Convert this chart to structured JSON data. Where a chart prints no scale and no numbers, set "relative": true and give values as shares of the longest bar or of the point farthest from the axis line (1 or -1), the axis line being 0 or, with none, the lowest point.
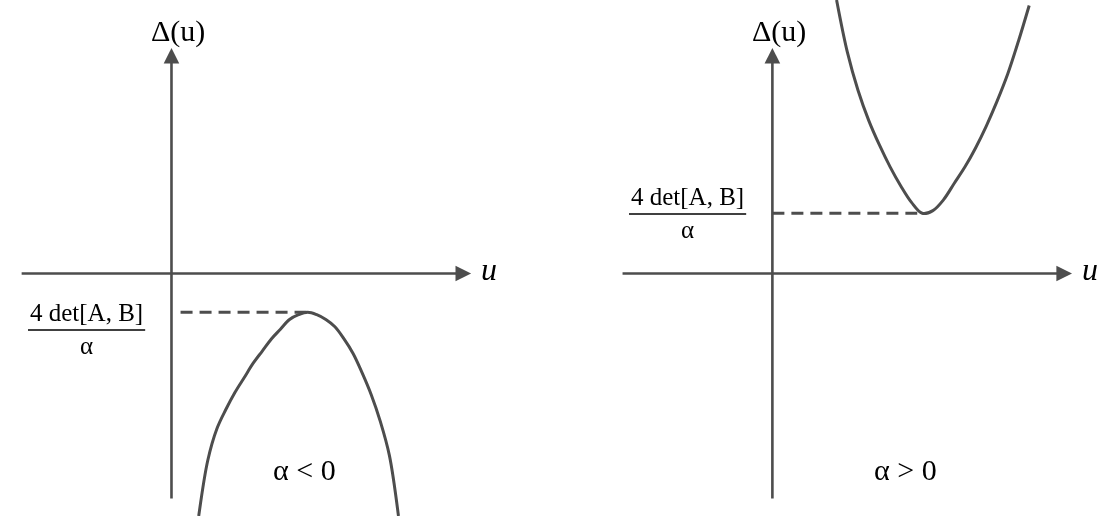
{
  "chart_data": [
    {
      "type": "line",
      "relative": true,
      "xlabel": "u",
      "ylabel": "Δ(u)",
      "categories": [
        null,
        null,
        null,
        null,
        null,
        null,
        null,
        null,
        null,
        null,
        null,
        null,
        null,
        null,
        null,
        null,
        null,
        null,
        null,
        null,
        null,
        null,
        null,
        null,
        null,
        null,
        null,
        null,
        null,
        null,
        null,
        null,
        null,
        null
      ],
      "series": [
        {
          "color": "#4d4d4d",
          "values": [
            null,
            null,
            null,
            -1,
            -0.77,
            -0.64,
            -0.56,
            -0.49,
            -0.43,
            -0.37,
            -0.32,
            -0.27,
            -0.23,
            -0.19,
            -0.17,
            -0.16,
            -0.17,
            -0.19,
            -0.22,
            -0.27,
            -0.33,
            -0.41,
            -0.5,
            -0.61,
            -0.75,
            -1,
            null,
            null,
            null,
            null,
            null,
            null,
            null,
            null
          ]
        },
        {
          "name": "4 det[A, B]\nα",
          "color": "#4d4d4d",
          "line_style": "dashed",
          "values": [
            null,
            -0.16,
            -0.16,
            -0.16,
            -0.16,
            -0.16,
            -0.16,
            -0.16,
            -0.16,
            -0.16,
            -0.16,
            -0.16,
            -0.16,
            -0.16,
            -0.16,
            -0.16,
            null,
            null,
            null,
            null,
            null,
            null,
            null,
            null,
            null,
            null,
            null,
            null,
            null,
            null,
            null,
            null,
            null,
            null
          ]
        }
      ],
      "annotations": [
        "α < 0"
      ]
    },
    {
      "type": "line",
      "relative": true,
      "xlabel": "u",
      "ylabel": "Δ(u)",
      "categories": [
        null,
        null,
        null,
        null,
        null,
        null,
        null,
        null,
        null,
        null,
        null,
        null,
        null,
        null,
        null,
        null,
        null,
        null,
        null,
        null,
        null,
        null,
        null,
        null,
        null,
        null,
        null,
        null,
        null
      ],
      "series": [
        {
          "color": "#4d4d4d",
          "values": [
            null,
            null,
            null,
            null,
            null,
            null,
            1,
            0.81,
            0.67,
            0.56,
            0.47,
            0.39,
            0.32,
            0.26,
            0.22,
            0.23,
            0.27,
            0.33,
            0.39,
            0.46,
            0.54,
            0.63,
            0.73,
            0.85,
            0.98,
            null,
            null,
            null,
            null
          ]
        },
        {
          "name": "4 det[A, B]\nα",
          "color": "#4d4d4d",
          "line_style": "dashed",
          "values": [
            0.22,
            0.22,
            0.22,
            0.22,
            0.22,
            0.22,
            0.22,
            0.22,
            0.22,
            0.22,
            0.22,
            0.22,
            0.22,
            0.22,
            0.22,
            null,
            null,
            null,
            null,
            null,
            null,
            null,
            null,
            null,
            null,
            null,
            null,
            null,
            null
          ]
        }
      ],
      "annotations": [
        "α > 0"
      ]
    }
  ]
}
